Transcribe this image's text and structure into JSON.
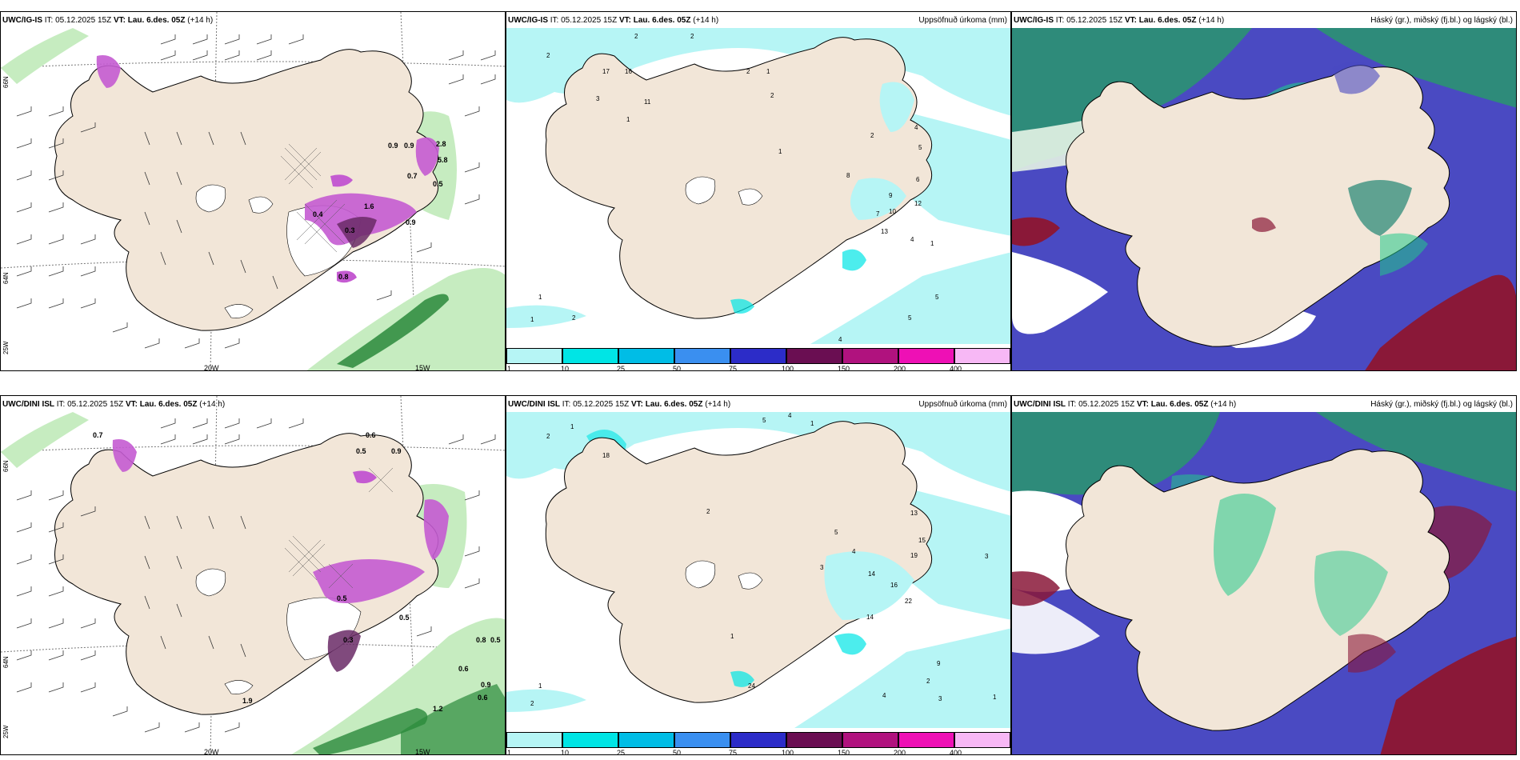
{
  "common": {
    "init_prefix": "IT:",
    "init_time": "05.12.2025 15Z",
    "valid_prefix": "VT:",
    "valid_time": "Lau. 6.des. 05Z",
    "lead": "(+14 h)"
  },
  "rows": [
    {
      "model": "UWC/IG-IS",
      "precip_values": [
        "0.9",
        "0.9",
        "0.7",
        "0.5",
        "0.9",
        "0.3",
        "0.4",
        "0.8",
        "1.6",
        "2.8",
        "5.8"
      ],
      "accum_values": [
        "2",
        "2",
        "2",
        "17",
        "16",
        "11",
        "3",
        "1",
        "2",
        "1",
        "2",
        "1",
        "8",
        "2",
        "4",
        "5",
        "6",
        "9",
        "7",
        "10",
        "13",
        "12",
        "4",
        "1",
        "5",
        "5",
        "4",
        "1",
        "1",
        "2"
      ]
    },
    {
      "model": "UWC/DINI ISL",
      "precip_values": [
        "0.7",
        "0.6",
        "0.5",
        "0.9",
        "0.5",
        "0.3",
        "0.5",
        "0.6",
        "0.9",
        "1.2",
        "0.8",
        "0.5",
        "1.9",
        "0.6"
      ],
      "accum_values": [
        "2",
        "18",
        "1",
        "5",
        "4",
        "1",
        "2",
        "13",
        "15",
        "14",
        "16",
        "19",
        "22",
        "14",
        "9",
        "24",
        "1",
        "2",
        "4",
        "3",
        "5",
        "4",
        "3",
        "1",
        "3",
        "1",
        "2"
      ]
    }
  ],
  "panel_precip": {
    "lon_labels": [
      "20W",
      "15W"
    ],
    "lat_labels": [
      "66N",
      "64N"
    ],
    "lon_left_label": "25W"
  },
  "panel_accum": {
    "subtitle": "Uppsöfnuð úrkoma (mm)",
    "colorbar_ticks": [
      "1",
      "10",
      "25",
      "50",
      "75",
      "100",
      "150",
      "200",
      "400"
    ],
    "colorbar_colors": [
      "#b6f5f5",
      "#00e5e5",
      "#00bde6",
      "#3a8ff0",
      "#2c2cc8",
      "#6a0e52",
      "#b0127e",
      "#ee10b5",
      "#f7b8f5"
    ]
  },
  "panel_cloud": {
    "subtitle": "Háský (gr.), miðský (fj.bl.) og lágský (bl.)"
  },
  "colors": {
    "land": "#f2e6d8",
    "light_cyan": "#b6f5f5",
    "green_light": "#c6ecc0",
    "green_dark": "#2a8a3b",
    "magenta": "#c45bd1",
    "cloud_blue": "#4a4ac2",
    "cloud_teal": "#2e8b7a",
    "cloud_green": "#22c88a",
    "cloud_red": "#8a1838"
  }
}
